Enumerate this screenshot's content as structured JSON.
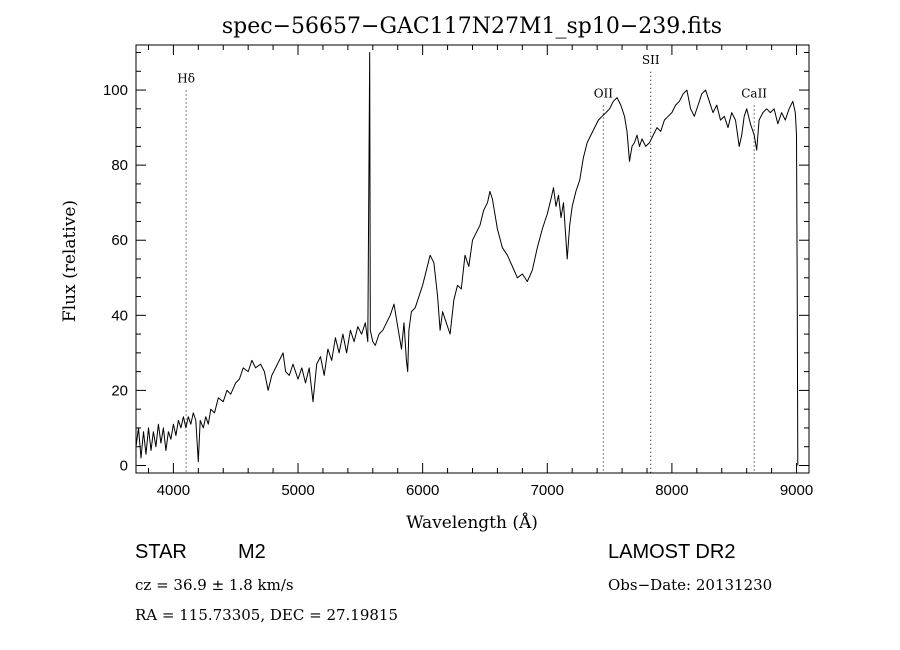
{
  "chart_data": {
    "type": "line",
    "title": "spec−56657−GAC117N27M1_sp10−239.fits",
    "xlabel": "Wavelength (Å)",
    "ylabel": "Flux (relative)",
    "xlim": [
      3700,
      9100
    ],
    "ylim": [
      -2,
      112
    ],
    "x_ticks": [
      4000,
      5000,
      6000,
      7000,
      8000,
      9000
    ],
    "y_ticks": [
      0,
      20,
      40,
      60,
      80,
      100
    ],
    "grid": false,
    "series": [
      {
        "points": [
          [
            3700,
            5
          ],
          [
            3720,
            10
          ],
          [
            3740,
            2
          ],
          [
            3760,
            9
          ],
          [
            3780,
            3
          ],
          [
            3800,
            10
          ],
          [
            3820,
            4
          ],
          [
            3840,
            9
          ],
          [
            3860,
            5
          ],
          [
            3880,
            11
          ],
          [
            3900,
            6
          ],
          [
            3920,
            10
          ],
          [
            3940,
            4
          ],
          [
            3960,
            9
          ],
          [
            3980,
            7
          ],
          [
            4000,
            11
          ],
          [
            4020,
            8
          ],
          [
            4040,
            12
          ],
          [
            4060,
            10
          ],
          [
            4080,
            13
          ],
          [
            4100,
            10
          ],
          [
            4120,
            13
          ],
          [
            4140,
            11
          ],
          [
            4160,
            14
          ],
          [
            4180,
            12
          ],
          [
            4200,
            1
          ],
          [
            4215,
            12
          ],
          [
            4240,
            10
          ],
          [
            4260,
            13
          ],
          [
            4280,
            11
          ],
          [
            4300,
            15
          ],
          [
            4330,
            14
          ],
          [
            4360,
            18
          ],
          [
            4400,
            17
          ],
          [
            4430,
            20
          ],
          [
            4460,
            19
          ],
          [
            4500,
            22
          ],
          [
            4530,
            23
          ],
          [
            4560,
            26
          ],
          [
            4600,
            25
          ],
          [
            4630,
            28
          ],
          [
            4660,
            26
          ],
          [
            4700,
            27
          ],
          [
            4730,
            25
          ],
          [
            4760,
            20
          ],
          [
            4790,
            24
          ],
          [
            4820,
            26
          ],
          [
            4850,
            28
          ],
          [
            4880,
            30
          ],
          [
            4900,
            25
          ],
          [
            4930,
            24
          ],
          [
            4960,
            27
          ],
          [
            5000,
            23
          ],
          [
            5030,
            26
          ],
          [
            5060,
            22
          ],
          [
            5090,
            26
          ],
          [
            5120,
            17
          ],
          [
            5150,
            27
          ],
          [
            5180,
            29
          ],
          [
            5210,
            24
          ],
          [
            5240,
            31
          ],
          [
            5270,
            28
          ],
          [
            5300,
            34
          ],
          [
            5330,
            30
          ],
          [
            5360,
            35
          ],
          [
            5390,
            30
          ],
          [
            5420,
            36
          ],
          [
            5450,
            33
          ],
          [
            5480,
            37
          ],
          [
            5510,
            35
          ],
          [
            5540,
            38
          ],
          [
            5560,
            33
          ],
          [
            5575,
            110
          ],
          [
            5580,
            36
          ],
          [
            5600,
            33
          ],
          [
            5620,
            32
          ],
          [
            5650,
            35
          ],
          [
            5680,
            36
          ],
          [
            5710,
            38
          ],
          [
            5740,
            40
          ],
          [
            5770,
            43
          ],
          [
            5800,
            37
          ],
          [
            5830,
            31
          ],
          [
            5850,
            38
          ],
          [
            5870,
            28
          ],
          [
            5880,
            25
          ],
          [
            5890,
            36
          ],
          [
            5910,
            41
          ],
          [
            5940,
            42
          ],
          [
            5970,
            45
          ],
          [
            6000,
            48
          ],
          [
            6030,
            52
          ],
          [
            6060,
            56
          ],
          [
            6090,
            54
          ],
          [
            6120,
            45
          ],
          [
            6140,
            36
          ],
          [
            6160,
            41
          ],
          [
            6190,
            38
          ],
          [
            6220,
            35
          ],
          [
            6250,
            44
          ],
          [
            6280,
            48
          ],
          [
            6310,
            47
          ],
          [
            6340,
            56
          ],
          [
            6370,
            53
          ],
          [
            6400,
            60
          ],
          [
            6430,
            62
          ],
          [
            6460,
            64
          ],
          [
            6490,
            68
          ],
          [
            6520,
            70
          ],
          [
            6540,
            73
          ],
          [
            6560,
            71
          ],
          [
            6580,
            67
          ],
          [
            6600,
            63
          ],
          [
            6640,
            58
          ],
          [
            6680,
            56
          ],
          [
            6720,
            53
          ],
          [
            6760,
            50
          ],
          [
            6800,
            51
          ],
          [
            6840,
            49
          ],
          [
            6880,
            52
          ],
          [
            6920,
            58
          ],
          [
            6960,
            63
          ],
          [
            7000,
            67
          ],
          [
            7030,
            71
          ],
          [
            7050,
            74
          ],
          [
            7070,
            69
          ],
          [
            7090,
            72
          ],
          [
            7110,
            66
          ],
          [
            7130,
            70
          ],
          [
            7160,
            55
          ],
          [
            7180,
            64
          ],
          [
            7200,
            69
          ],
          [
            7230,
            73
          ],
          [
            7260,
            76
          ],
          [
            7290,
            82
          ],
          [
            7320,
            86
          ],
          [
            7350,
            88
          ],
          [
            7380,
            90
          ],
          [
            7410,
            92
          ],
          [
            7440,
            93
          ],
          [
            7470,
            94
          ],
          [
            7500,
            95
          ],
          [
            7530,
            97
          ],
          [
            7560,
            98
          ],
          [
            7590,
            96
          ],
          [
            7620,
            93
          ],
          [
            7640,
            89
          ],
          [
            7660,
            81
          ],
          [
            7680,
            85
          ],
          [
            7700,
            86
          ],
          [
            7720,
            88
          ],
          [
            7740,
            85
          ],
          [
            7760,
            87
          ],
          [
            7790,
            85
          ],
          [
            7820,
            86
          ],
          [
            7850,
            88
          ],
          [
            7880,
            90
          ],
          [
            7910,
            89
          ],
          [
            7940,
            92
          ],
          [
            7970,
            93
          ],
          [
            8000,
            94
          ],
          [
            8030,
            96
          ],
          [
            8060,
            97
          ],
          [
            8090,
            99
          ],
          [
            8120,
            100
          ],
          [
            8150,
            95
          ],
          [
            8180,
            93
          ],
          [
            8210,
            96
          ],
          [
            8240,
            99
          ],
          [
            8270,
            100
          ],
          [
            8300,
            97
          ],
          [
            8330,
            94
          ],
          [
            8360,
            96
          ],
          [
            8390,
            92
          ],
          [
            8420,
            93
          ],
          [
            8450,
            90
          ],
          [
            8480,
            94
          ],
          [
            8510,
            92
          ],
          [
            8540,
            85
          ],
          [
            8560,
            88
          ],
          [
            8580,
            93
          ],
          [
            8600,
            95
          ],
          [
            8630,
            91
          ],
          [
            8660,
            88
          ],
          [
            8680,
            84
          ],
          [
            8700,
            92
          ],
          [
            8730,
            94
          ],
          [
            8760,
            95
          ],
          [
            8790,
            94
          ],
          [
            8820,
            95
          ],
          [
            8850,
            91
          ],
          [
            8880,
            94
          ],
          [
            8910,
            92
          ],
          [
            8940,
            95
          ],
          [
            8970,
            97
          ],
          [
            8990,
            94
          ],
          [
            9000,
            88
          ],
          [
            9005,
            48
          ],
          [
            9010,
            0
          ]
        ]
      }
    ],
    "reference_lines": [
      {
        "label": "Hδ",
        "x": 4102,
        "label_y": 102
      },
      {
        "label": "OII",
        "x": 7450,
        "label_y": 98
      },
      {
        "label": "SII",
        "x": 7830,
        "label_y": 107
      },
      {
        "label": "CaII",
        "x": 8660,
        "label_y": 98
      }
    ]
  },
  "info": {
    "object_type": "STAR",
    "subclass": "M2",
    "survey": "LAMOST DR2",
    "redshift": "cz = 36.9 ± 1.8 km/s",
    "obs_date": "Obs−Date: 20131230",
    "coords": "RA = 115.73305, DEC =  27.19815"
  }
}
